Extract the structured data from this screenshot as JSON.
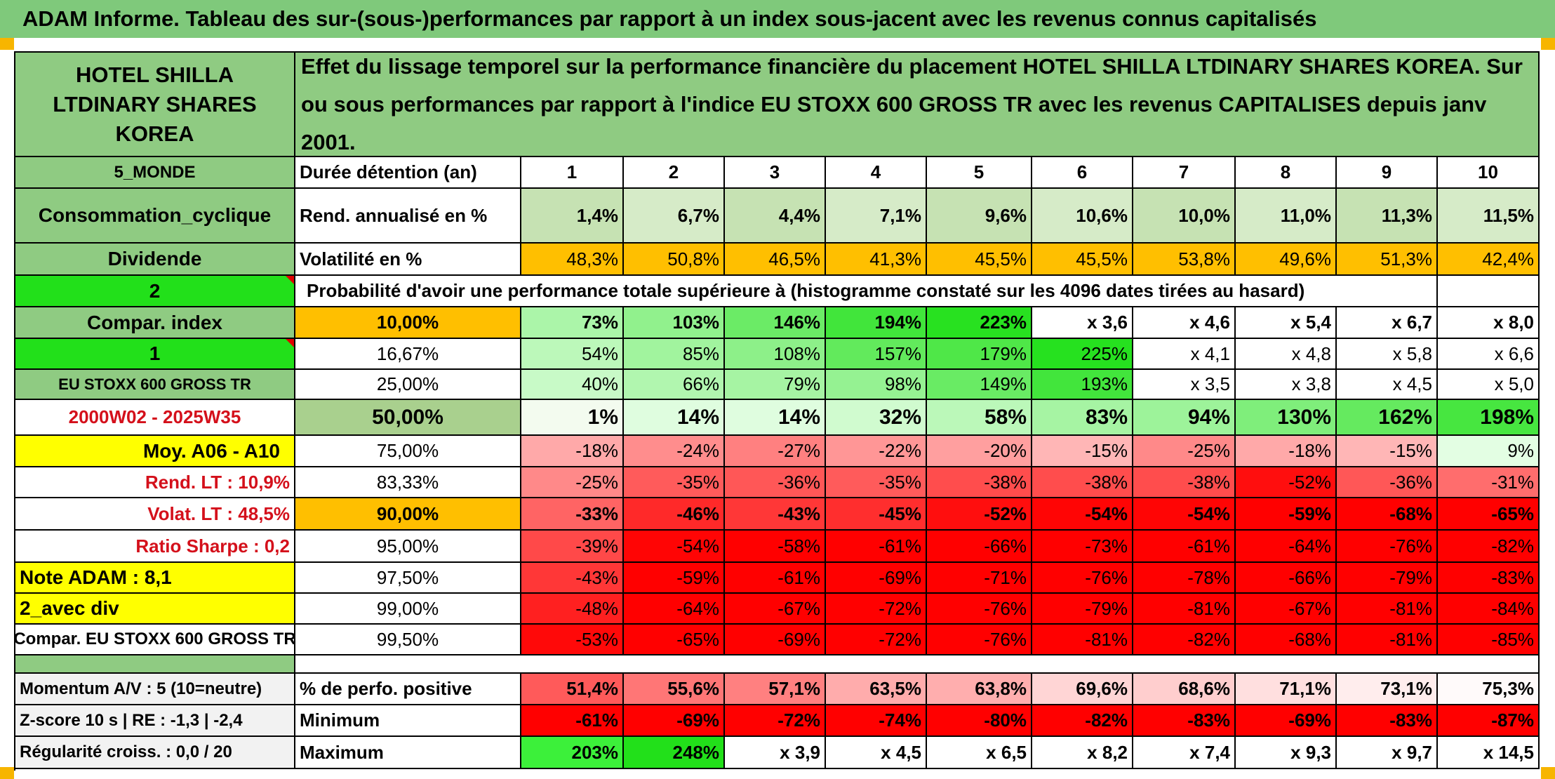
{
  "title": "ADAM Informe. Tableau des sur-(sous-)performances par rapport à un index sous-jacent avec les revenus connus capitalisés",
  "header": {
    "company": "HOTEL SHILLA LTDINARY SHARES KOREA",
    "description": "Effet du lissage temporel sur la performance financière du placement HOTEL SHILLA LTDINARY SHARES KOREA. Sur ou sous performances par rapport à l'indice EU STOXX 600 GROSS TR avec les revenus CAPITALISES depuis janv 2001."
  },
  "side": {
    "region": "5_MONDE",
    "sector": "Consommation_cyclique",
    "dividend": "Dividende",
    "flag1": "2",
    "compar_index_label": "Compar. index",
    "flag2": "1",
    "index_name": "EU STOXX 600 GROSS TR",
    "period": "2000W02 - 2025W35",
    "avg": "Moy. A06 - A10",
    "rend_lt": "Rend. LT :   10,9%",
    "volat_lt": "Volat. LT :   48,5%",
    "sharpe": "Ratio Sharpe :   0,2",
    "note": "Note ADAM : 8,1",
    "div_mode": "2_avec div",
    "compar": "Compar. EU STOXX 600 GROSS TR",
    "momentum": "Momentum A/V : 5 (10=neutre)",
    "zscore": "Z-score 10 s | RE : -1,3 | -2,4",
    "regularite": "Régularité croiss. : 0,0 / 20"
  },
  "labels": {
    "duree": "Durée détention (an)",
    "rend": "Rend. annualisé en %",
    "vol": "Volatilité en %",
    "proba": "Probabilité d'avoir une performance totale supérieure à (histogramme constaté sur les 4096 dates tirées au hasard)",
    "perfo_pos": "% de perfo. positive",
    "minimum": "Minimum",
    "maximum": "Maximum"
  },
  "years": [
    "1",
    "2",
    "3",
    "4",
    "5",
    "6",
    "7",
    "8",
    "9",
    "10"
  ],
  "rend": [
    "1,4%",
    "6,7%",
    "4,4%",
    "7,1%",
    "9,6%",
    "10,6%",
    "10,0%",
    "11,0%",
    "11,3%",
    "11,5%"
  ],
  "vol": [
    "48,3%",
    "50,8%",
    "46,5%",
    "41,3%",
    "45,5%",
    "45,5%",
    "53,8%",
    "49,6%",
    "51,3%",
    "42,4%"
  ],
  "percentile_rows": [
    {
      "pct": "10,00%",
      "values": [
        "73%",
        "103%",
        "146%",
        "194%",
        "223%",
        "x 3,6",
        "x 4,6",
        "x 5,4",
        "x 6,7",
        "x 8,0"
      ]
    },
    {
      "pct": "16,67%",
      "values": [
        "54%",
        "85%",
        "108%",
        "157%",
        "179%",
        "225%",
        "x 4,1",
        "x 4,8",
        "x 5,8",
        "x 6,6"
      ]
    },
    {
      "pct": "25,00%",
      "values": [
        "40%",
        "66%",
        "79%",
        "98%",
        "149%",
        "193%",
        "x 3,5",
        "x 3,8",
        "x 4,5",
        "x 5,0"
      ]
    },
    {
      "pct": "50,00%",
      "values": [
        "1%",
        "14%",
        "14%",
        "32%",
        "58%",
        "83%",
        "94%",
        "130%",
        "162%",
        "198%"
      ]
    },
    {
      "pct": "75,00%",
      "values": [
        "-18%",
        "-24%",
        "-27%",
        "-22%",
        "-20%",
        "-15%",
        "-25%",
        "-18%",
        "-15%",
        "9%"
      ]
    },
    {
      "pct": "83,33%",
      "values": [
        "-25%",
        "-35%",
        "-36%",
        "-35%",
        "-38%",
        "-38%",
        "-38%",
        "-52%",
        "-36%",
        "-31%"
      ]
    },
    {
      "pct": "90,00%",
      "values": [
        "-33%",
        "-46%",
        "-43%",
        "-45%",
        "-52%",
        "-54%",
        "-54%",
        "-59%",
        "-68%",
        "-65%"
      ]
    },
    {
      "pct": "95,00%",
      "values": [
        "-39%",
        "-54%",
        "-58%",
        "-61%",
        "-66%",
        "-73%",
        "-61%",
        "-64%",
        "-76%",
        "-82%"
      ]
    },
    {
      "pct": "97,50%",
      "values": [
        "-43%",
        "-59%",
        "-61%",
        "-69%",
        "-71%",
        "-76%",
        "-78%",
        "-66%",
        "-79%",
        "-83%"
      ]
    },
    {
      "pct": "99,00%",
      "values": [
        "-48%",
        "-64%",
        "-67%",
        "-72%",
        "-76%",
        "-79%",
        "-81%",
        "-67%",
        "-81%",
        "-84%"
      ]
    },
    {
      "pct": "99,50%",
      "values": [
        "-53%",
        "-65%",
        "-69%",
        "-72%",
        "-76%",
        "-81%",
        "-82%",
        "-68%",
        "-81%",
        "-85%"
      ]
    }
  ],
  "perfo_pos": [
    "51,4%",
    "55,6%",
    "57,1%",
    "63,5%",
    "63,8%",
    "69,6%",
    "68,6%",
    "71,1%",
    "73,1%",
    "75,3%"
  ],
  "minimum": [
    "-61%",
    "-69%",
    "-72%",
    "-74%",
    "-80%",
    "-82%",
    "-83%",
    "-69%",
    "-83%",
    "-87%"
  ],
  "maximum": [
    "203%",
    "248%",
    "x 3,9",
    "x 4,5",
    "x 6,5",
    "x 8,2",
    "x 7,4",
    "x 9,3",
    "x 9,7",
    "x 14,5"
  ],
  "colors": {
    "title_green": "#7fc97b",
    "label_green": "#8fcb82",
    "bright_green": "#22e01a",
    "yellow": "#ffff00",
    "orange": "#ffbf00",
    "red": "#ff0000",
    "text_red": "#d4101b"
  }
}
